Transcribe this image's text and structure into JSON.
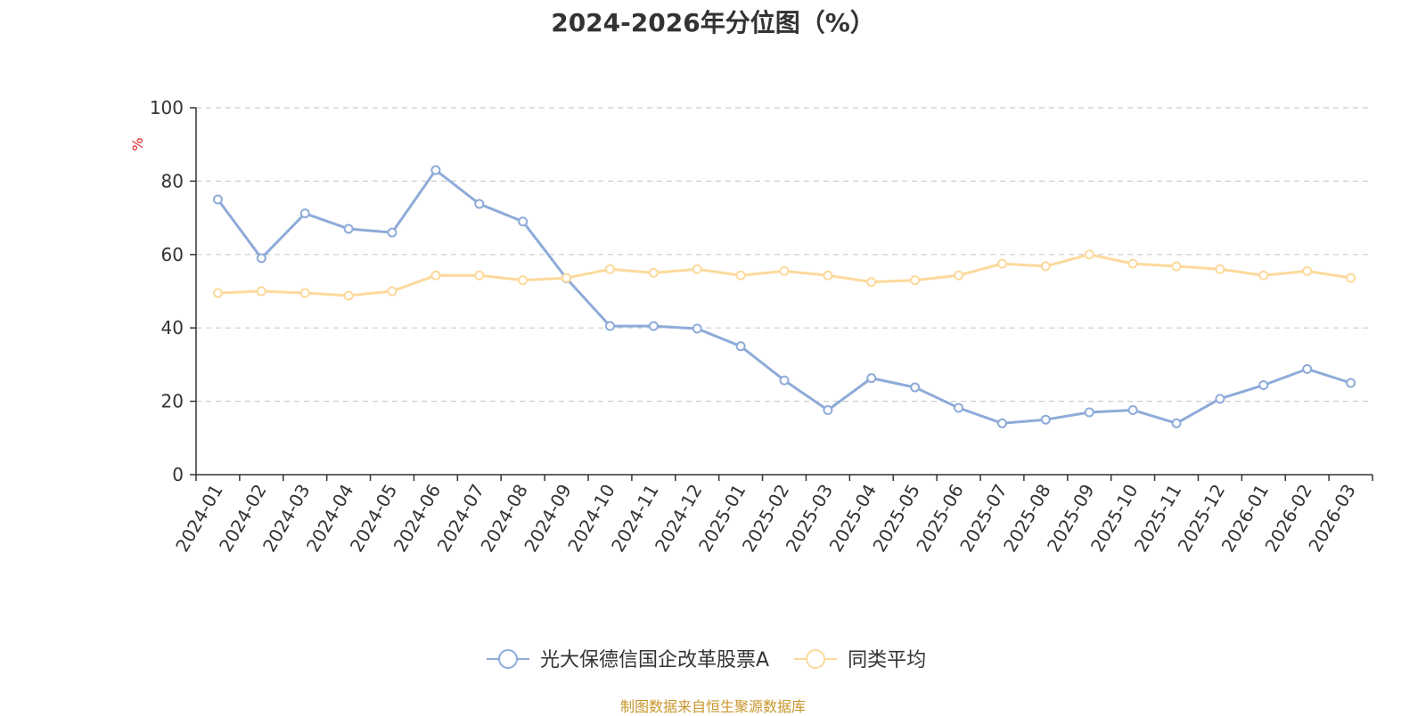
{
  "chart_data": {
    "type": "line",
    "title": "2024-2026年分位图（%）",
    "ylabel": "%",
    "xlabel": "",
    "ylim": [
      0,
      100
    ],
    "yticks": [
      0,
      20,
      40,
      60,
      80,
      100
    ],
    "grid": true,
    "legend_position": "bottom-center",
    "categories": [
      "2024-01",
      "2024-02",
      "2024-03",
      "2024-04",
      "2024-05",
      "2024-06",
      "2024-07",
      "2024-08",
      "2024-09",
      "2024-10",
      "2024-11",
      "2024-12",
      "2025-01",
      "2025-02",
      "2025-03",
      "2025-04",
      "2025-05",
      "2025-06",
      "2025-07",
      "2025-08",
      "2025-09",
      "2025-10",
      "2025-11",
      "2025-12",
      "2026-01",
      "2026-02",
      "2026-03"
    ],
    "series": [
      {
        "name": "光大保德信国企改革股票A",
        "color": "#8eabd9",
        "values": [
          75,
          59,
          71.2,
          67,
          66,
          83,
          73.8,
          69,
          53.5,
          40.5,
          40.5,
          39.8,
          35,
          25.7,
          17.6,
          26.3,
          23.8,
          18.2,
          14,
          15,
          17,
          17.6,
          14,
          20.7,
          24.4,
          28.8,
          25
        ]
      },
      {
        "name": "同类平均",
        "color": "#fcd99c",
        "values": [
          49.5,
          50,
          49.5,
          48.8,
          50,
          54.3,
          54.3,
          53,
          53.6,
          56,
          55,
          56,
          54.3,
          55.5,
          54.3,
          52.5,
          53,
          54.3,
          57.5,
          56.8,
          60,
          57.5,
          56.8,
          56,
          54.3,
          55.5,
          53.6
        ]
      }
    ]
  },
  "source_note": "制图数据来自恒生聚源数据库"
}
